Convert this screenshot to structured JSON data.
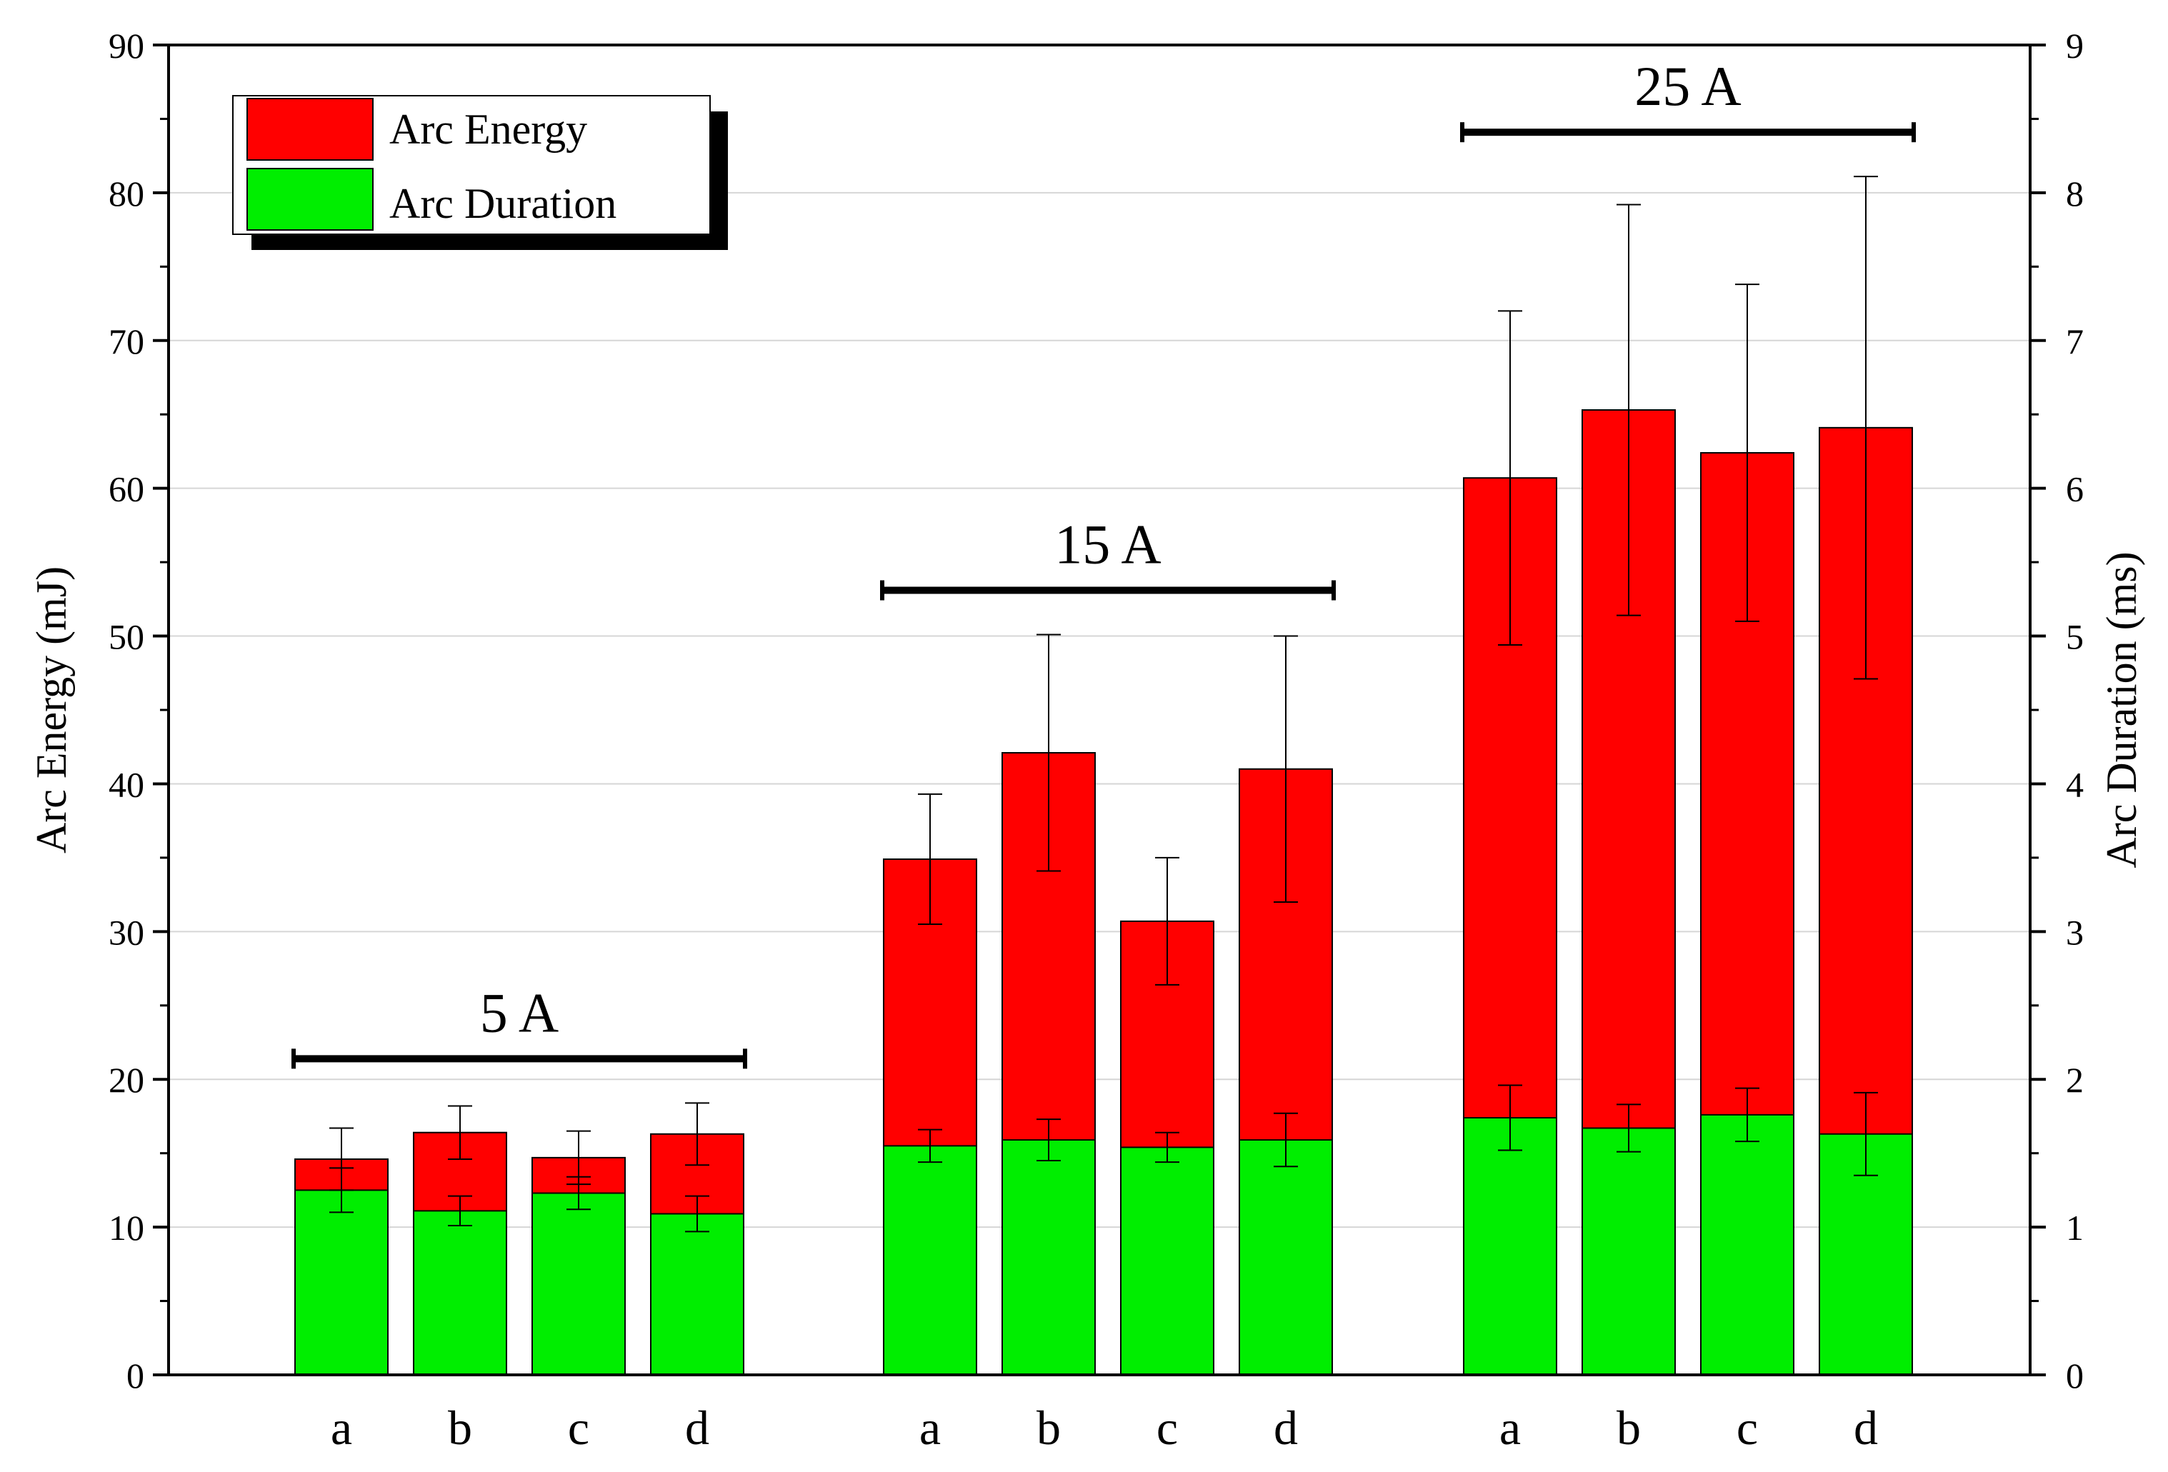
{
  "chart_data": {
    "type": "bar",
    "subtype": "overlapping-dual-axis",
    "title": "",
    "ylabel": "Arc Energy (mJ)",
    "ylabel_right": "Arc Duration (ms)",
    "ylim": [
      0,
      90
    ],
    "ylim_right": [
      0,
      9
    ],
    "yticks": [
      0,
      10,
      20,
      30,
      40,
      50,
      60,
      70,
      80,
      90
    ],
    "yticks_right": [
      0,
      1,
      2,
      3,
      4,
      5,
      6,
      7,
      8,
      9
    ],
    "grid": true,
    "legend_position": "top-left",
    "colors": {
      "energy": "#ff0000",
      "duration": "#00ee00",
      "stroke": "#000000"
    },
    "groups": [
      {
        "label": "5 A",
        "categories": [
          "a",
          "b",
          "c",
          "d"
        ]
      },
      {
        "label": "15 A",
        "categories": [
          "a",
          "b",
          "c",
          "d"
        ]
      },
      {
        "label": "25 A",
        "categories": [
          "a",
          "b",
          "c",
          "d"
        ]
      }
    ],
    "series": [
      {
        "name": "Arc Energy",
        "axis": "left",
        "color": "#ff0000",
        "values": [
          14.6,
          16.4,
          14.7,
          16.3,
          34.9,
          42.1,
          30.7,
          41.0,
          60.7,
          65.3,
          62.4,
          64.1
        ],
        "errors": [
          2.1,
          1.8,
          1.8,
          2.1,
          4.4,
          8.0,
          4.3,
          9.0,
          11.3,
          13.9,
          11.4,
          17.0
        ]
      },
      {
        "name": "Arc Duration",
        "axis": "right",
        "color": "#00ee00",
        "values": [
          1.25,
          1.11,
          1.23,
          1.09,
          1.55,
          1.59,
          1.54,
          1.59,
          1.74,
          1.67,
          1.76,
          1.63
        ],
        "errors": [
          0.15,
          0.1,
          0.11,
          0.12,
          0.11,
          0.14,
          0.1,
          0.18,
          0.22,
          0.16,
          0.18,
          0.28
        ]
      }
    ]
  }
}
